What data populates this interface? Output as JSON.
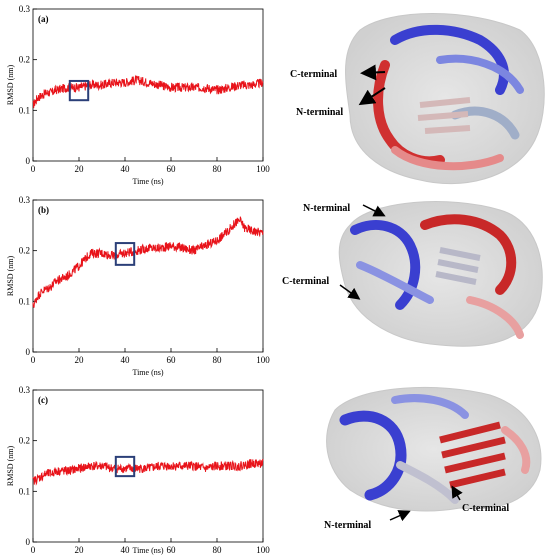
{
  "chart_data": [
    {
      "type": "line",
      "panel_label": "(a)",
      "xlabel": "Time (ns)",
      "ylabel": "RMSD (nm)",
      "xlim": [
        0,
        100
      ],
      "ylim": [
        0,
        0.3
      ],
      "xticks": [
        0,
        20,
        40,
        60,
        80,
        100
      ],
      "yticks": [
        0,
        0.1,
        0.2,
        0.3
      ],
      "grid": false,
      "line_color": "#e8131a",
      "highlight_box_color": "#2b3f78",
      "highlight_box_x": [
        16,
        24
      ],
      "highlight_box_y": [
        0.12,
        0.158
      ],
      "series": [
        {
          "x": [
            0,
            2,
            4,
            6,
            8,
            10,
            15,
            20,
            25,
            30,
            35,
            40,
            45,
            50,
            55,
            60,
            65,
            70,
            75,
            80,
            85,
            90,
            95,
            100
          ],
          "values": [
            0.11,
            0.125,
            0.13,
            0.135,
            0.135,
            0.14,
            0.145,
            0.145,
            0.15,
            0.15,
            0.155,
            0.155,
            0.16,
            0.155,
            0.15,
            0.145,
            0.145,
            0.145,
            0.145,
            0.14,
            0.145,
            0.15,
            0.15,
            0.155
          ]
        }
      ]
    },
    {
      "type": "line",
      "panel_label": "(b)",
      "xlabel": "Time (ns)",
      "ylabel": "RMSD (nm)",
      "xlim": [
        0,
        100
      ],
      "ylim": [
        0,
        0.3
      ],
      "xticks": [
        0,
        20,
        40,
        60,
        80,
        100
      ],
      "yticks": [
        0,
        0.1,
        0.2,
        0.3
      ],
      "grid": false,
      "line_color": "#e8131a",
      "highlight_box_color": "#2b3f78",
      "highlight_box_x": [
        36,
        44
      ],
      "highlight_box_y": [
        0.172,
        0.215
      ],
      "series": [
        {
          "x": [
            0,
            2,
            4,
            6,
            8,
            10,
            15,
            20,
            25,
            30,
            35,
            40,
            45,
            50,
            55,
            60,
            65,
            70,
            75,
            80,
            85,
            88,
            90,
            92,
            95,
            100
          ],
          "values": [
            0.09,
            0.11,
            0.12,
            0.125,
            0.13,
            0.14,
            0.15,
            0.17,
            0.195,
            0.195,
            0.19,
            0.195,
            0.2,
            0.205,
            0.205,
            0.21,
            0.205,
            0.2,
            0.21,
            0.22,
            0.24,
            0.255,
            0.26,
            0.245,
            0.24,
            0.235
          ]
        }
      ]
    },
    {
      "type": "line",
      "panel_label": "(c)",
      "xlabel": "Time (ns)",
      "ylabel": "RMSD (nm)",
      "xlim": [
        0,
        100
      ],
      "ylim": [
        0,
        0.3
      ],
      "xticks": [
        0,
        20,
        40,
        60,
        80,
        100
      ],
      "yticks": [
        0,
        0.1,
        0.2,
        0.3
      ],
      "grid": false,
      "line_color": "#e8131a",
      "highlight_box_color": "#2b3f78",
      "highlight_box_x": [
        36,
        44
      ],
      "highlight_box_y": [
        0.13,
        0.168
      ],
      "series": [
        {
          "x": [
            0,
            2,
            4,
            6,
            8,
            10,
            15,
            20,
            25,
            30,
            35,
            40,
            45,
            50,
            55,
            60,
            65,
            70,
            75,
            80,
            85,
            90,
            95,
            100
          ],
          "values": [
            0.12,
            0.125,
            0.13,
            0.135,
            0.135,
            0.14,
            0.14,
            0.145,
            0.15,
            0.15,
            0.145,
            0.145,
            0.145,
            0.145,
            0.15,
            0.15,
            0.15,
            0.15,
            0.145,
            0.15,
            0.15,
            0.15,
            0.155,
            0.155
          ]
        }
      ]
    }
  ],
  "structures": [
    {
      "labels": [
        {
          "text": "C-terminal"
        },
        {
          "text": "N-terminal"
        }
      ]
    },
    {
      "labels": [
        {
          "text": "N-terminal"
        },
        {
          "text": "C-terminal"
        }
      ]
    },
    {
      "labels": [
        {
          "text": "N-terminal"
        },
        {
          "text": "C-terminal"
        }
      ]
    }
  ]
}
